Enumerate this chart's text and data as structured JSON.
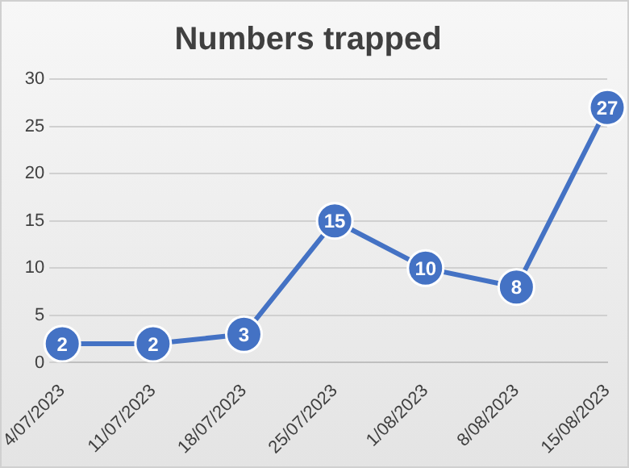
{
  "chart_data": {
    "type": "line",
    "title": "Numbers trapped",
    "categories": [
      "4/07/2023",
      "11/07/2023",
      "18/07/2023",
      "25/07/2023",
      "1/08/2023",
      "8/08/2023",
      "15/08/2023"
    ],
    "values": [
      2,
      2,
      3,
      15,
      10,
      8,
      27
    ],
    "color": "#4472c4",
    "ylim": [
      0,
      30
    ],
    "yticks": [
      0,
      5,
      10,
      15,
      20,
      25,
      30
    ],
    "grid": "y",
    "legend": false,
    "marker": "circle",
    "line_style": "solid",
    "data_labels": true
  }
}
